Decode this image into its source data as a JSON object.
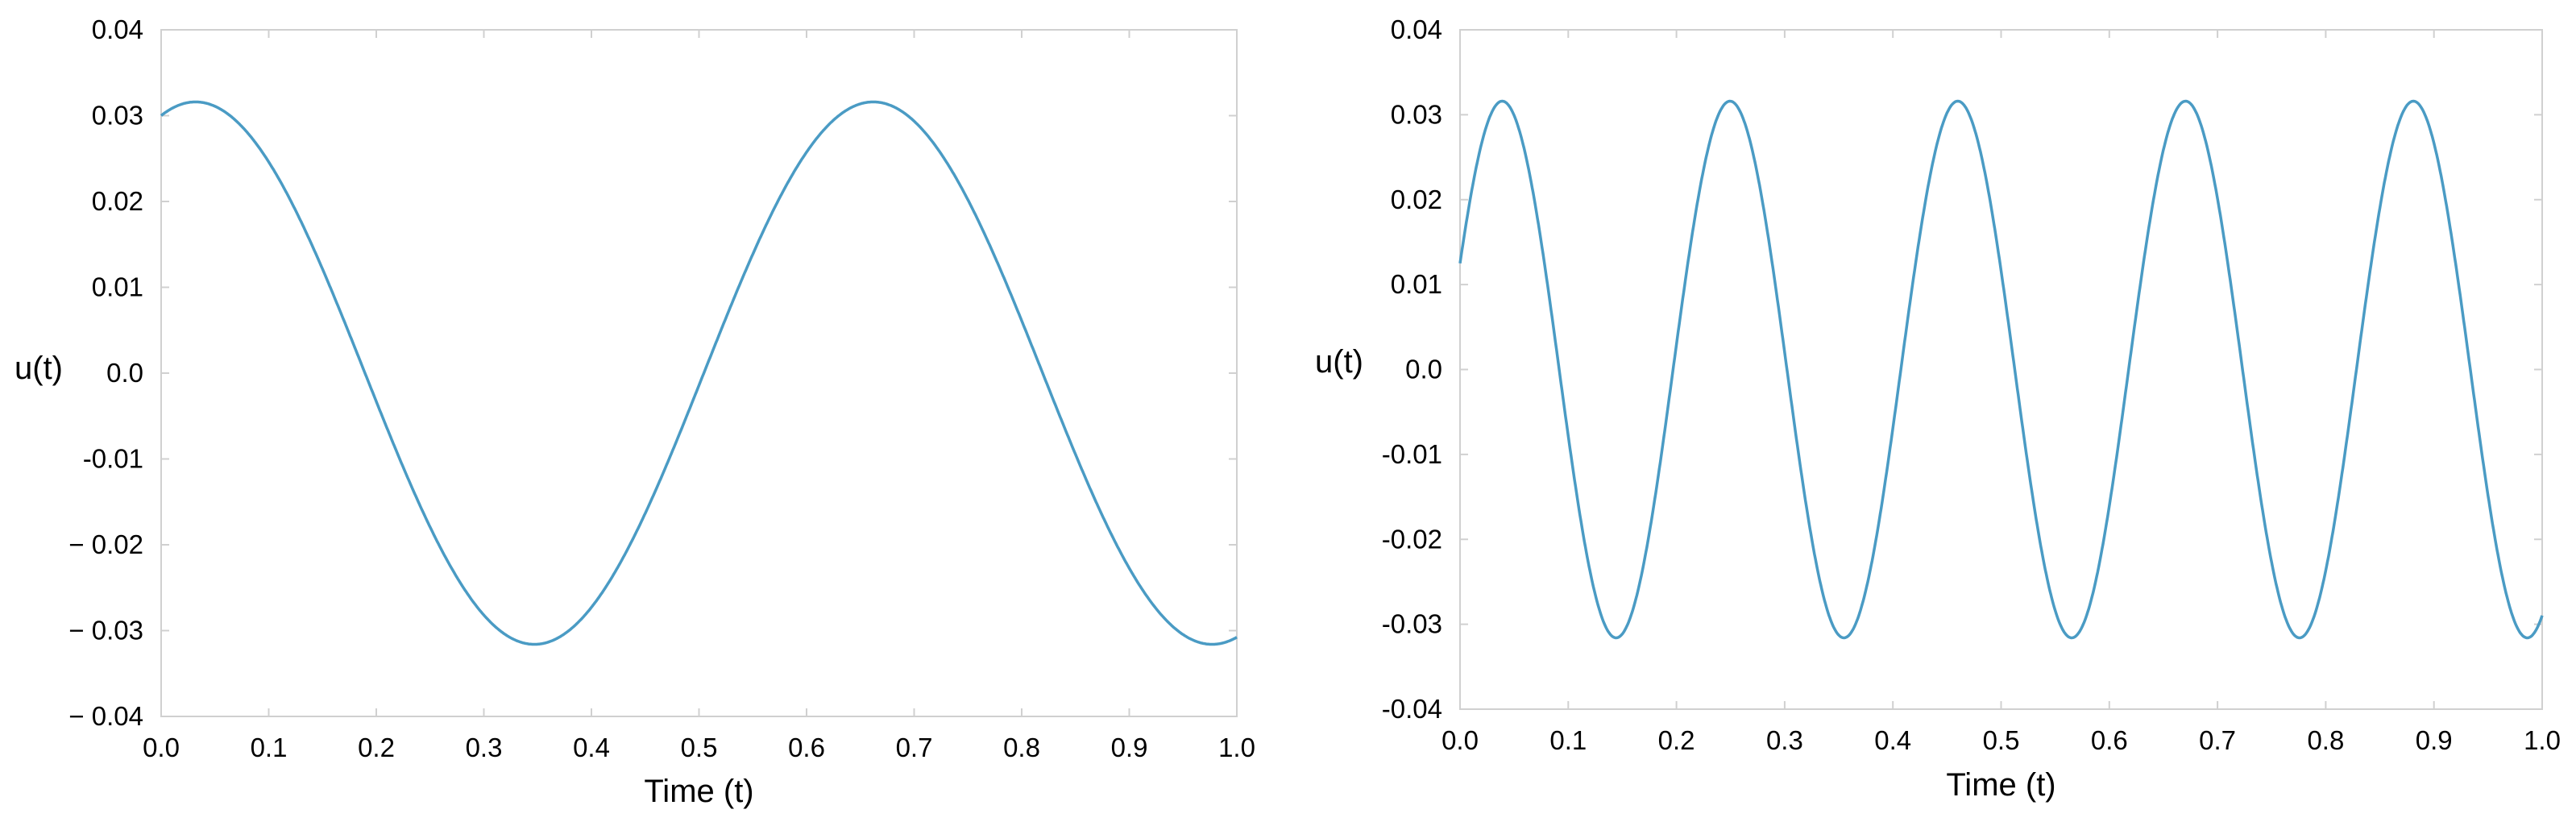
{
  "colors": {
    "line": "#4a9bc4",
    "frame": "#d0d0d0"
  },
  "chart_data": [
    {
      "type": "line",
      "xlabel": "Time (t)",
      "ylabel": "u(t)",
      "xlim": [
        0.0,
        1.0
      ],
      "ylim": [
        -0.04,
        0.04
      ],
      "xticks": [
        "0.0",
        "0.1",
        "0.2",
        "0.3",
        "0.4",
        "0.5",
        "0.6",
        "0.7",
        "0.8",
        "0.9",
        "1.0"
      ],
      "yticks": [
        "0.04",
        "0.03",
        "0.02",
        "0.01",
        "0.0",
        "-0.01",
        "− 0.02",
        "− 0.03",
        "− 0.04"
      ],
      "yticks_tail": "-0.01",
      "grid": false,
      "series": [
        {
          "amplitude": 0.0316,
          "period": 0.63,
          "peak_t": 0.032,
          "x": [
            0.0,
            0.032,
            0.1,
            0.2,
            0.3,
            0.347,
            0.4,
            0.5,
            0.6,
            0.662,
            0.7,
            0.8,
            0.9,
            0.977,
            1.0
          ],
          "y": [
            0.03,
            0.0316,
            0.024,
            0.007,
            -0.023,
            -0.0316,
            -0.026,
            -0.006,
            0.025,
            0.0316,
            0.029,
            0.009,
            -0.018,
            -0.0316,
            -0.0305
          ]
        }
      ]
    },
    {
      "type": "line",
      "xlabel": "Time (t)",
      "ylabel": "u(t)",
      "xlim": [
        0.0,
        1.0
      ],
      "ylim": [
        -0.04,
        0.04
      ],
      "xticks": [
        "0.0",
        "0.1",
        "0.2",
        "0.3",
        "0.4",
        "0.5",
        "0.6",
        "0.7",
        "0.8",
        "0.9",
        "1.0"
      ],
      "yticks": [
        "0.04",
        "0.03",
        "0.02",
        "0.01",
        "0.0",
        "-0.01",
        "-0.02",
        "-0.03",
        "-0.04"
      ],
      "grid": false,
      "series": [
        {
          "amplitude": 0.0316,
          "period": 0.2105,
          "peak_t": 0.039,
          "x": [
            0.0,
            0.039,
            0.144,
            0.25,
            0.355,
            0.46,
            0.565,
            0.671,
            0.776,
            0.881,
            0.986,
            1.0
          ],
          "y": [
            0.0085,
            0.0316,
            -0.0316,
            0.0316,
            -0.0316,
            0.0316,
            -0.0316,
            0.0316,
            -0.0316,
            0.0316,
            -0.0316,
            -0.029
          ]
        }
      ]
    }
  ]
}
